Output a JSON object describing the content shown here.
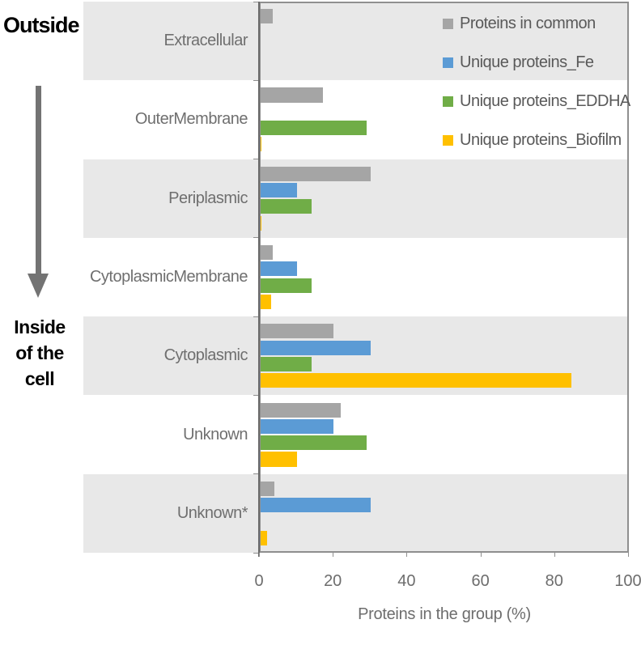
{
  "annotations": {
    "outside": "Outside",
    "inside": "Inside\nof the cell"
  },
  "chart_data": {
    "type": "bar",
    "orientation": "horizontal",
    "title": "",
    "xlabel": "Proteins in the group (%)",
    "ylabel": "",
    "xlim": [
      0,
      100
    ],
    "xticks": [
      0,
      20,
      40,
      60,
      80,
      100
    ],
    "grid": false,
    "legend_position": "top-right",
    "categories": [
      "Extracellular",
      "OuterMembrane",
      "Periplasmic",
      "CytoplasmicMembrane",
      "Cytoplasmic",
      "Unknown",
      "Unknown*"
    ],
    "series": [
      {
        "name": "Proteins in common",
        "color": "#a5a5a5",
        "values": [
          3.5,
          17,
          30,
          3.5,
          20,
          22,
          4
        ]
      },
      {
        "name": "Unique proteins_Fe",
        "color": "#5b9bd5",
        "values": [
          0,
          0,
          10,
          10,
          30,
          20,
          30
        ]
      },
      {
        "name": "Unique proteins_EDDHA",
        "color": "#70ad47",
        "values": [
          0,
          29,
          14,
          14,
          14,
          29,
          0
        ]
      },
      {
        "name": "Unique proteins_Biofilm",
        "color": "#ffc000",
        "values": [
          0,
          0.4,
          0.4,
          3,
          84.5,
          10,
          2
        ]
      }
    ],
    "colors": {
      "stripe_odd": "#e8e8e8",
      "stripe_even": "#ffffff",
      "axis": "#6a6a6a",
      "plot_border": "#8f8f8f",
      "tick_text": "#6d6d6d",
      "category_text": "#6f6f6f",
      "legend_text": "#595959",
      "annotation_text": "#000000",
      "arrow": "#737373"
    }
  }
}
